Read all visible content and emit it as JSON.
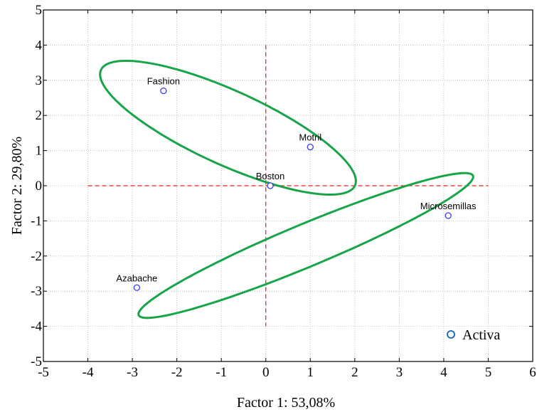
{
  "chart_data": {
    "type": "scatter",
    "xlabel": "Factor 1: 53,08%",
    "ylabel": "Factor 2: 29,80%",
    "xlim": [
      -5,
      6
    ],
    "ylim": [
      -5,
      5
    ],
    "xticks": [
      "-5",
      "-4",
      "-3",
      "-2",
      "-1",
      "0",
      "1",
      "2",
      "3",
      "4",
      "5",
      "6"
    ],
    "yticks": [
      "5",
      "4",
      "3",
      "2",
      "1",
      "0",
      "-1",
      "-2",
      "-3",
      "-4",
      "-5"
    ],
    "grid": true,
    "legend_position": "bottom-right",
    "colors": {
      "point": "#3a3af0",
      "ellipse": "#18a54a",
      "reference_line": "#e02020",
      "legend_marker": "#1f6fbf"
    },
    "series": [
      {
        "name": "Activa",
        "points": [
          {
            "label": "Fashion",
            "x": -2.3,
            "y": 2.7
          },
          {
            "label": "Motril",
            "x": 1.0,
            "y": 1.1
          },
          {
            "label": "Boston",
            "x": 0.1,
            "y": 0.0
          },
          {
            "label": "Microsemillas",
            "x": 4.1,
            "y": -0.85
          },
          {
            "label": "Azabache",
            "x": -2.9,
            "y": -2.9
          }
        ]
      }
    ],
    "reference_lines": {
      "vertical": {
        "x": 0,
        "y_range": [
          -4,
          4
        ]
      },
      "horizontal": {
        "y": 0,
        "x_range": [
          -4,
          5
        ]
      }
    },
    "ellipses": [
      {
        "group": [
          "Fashion",
          "Motril",
          "Boston"
        ],
        "center": [
          -0.85,
          1.65
        ],
        "rx": 3.3,
        "ry": 1.0,
        "angle_deg": -31
      },
      {
        "group": [
          "Microsemillas",
          "Azabache"
        ],
        "center": [
          0.9,
          -1.7
        ],
        "rx": 4.25,
        "ry": 0.58,
        "angle_deg": 28
      }
    ]
  }
}
